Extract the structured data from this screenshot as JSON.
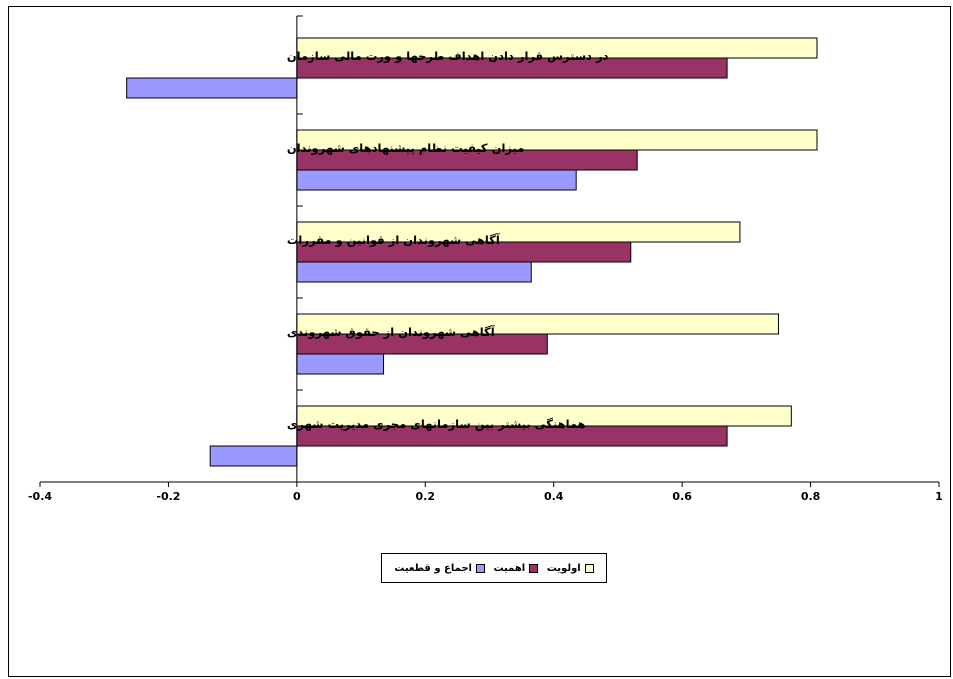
{
  "chart_data": {
    "type": "bar",
    "orientation": "horizontal",
    "categories": [
      "در دسترس قرار دادن اهداف طرحها و ورت مالی سازمان",
      "میزان کیفیت نظام پیشنهادهای شهروندان",
      "آگاهی شهروندان از قوانین و مقررات",
      "آگاهی شهروندان از حقوق شهروندی",
      "هماهنگی بیشتر بین سازمانهای مجری مدیریت شهری"
    ],
    "series": [
      {
        "name": "اولویت",
        "color": "#FFFFCC",
        "values": [
          0.81,
          0.81,
          0.69,
          0.75,
          0.77
        ]
      },
      {
        "name": "اهمیت",
        "color": "#993366",
        "values": [
          0.67,
          0.53,
          0.52,
          0.39,
          0.67
        ]
      },
      {
        "name": "اجماع و قطعیت",
        "color": "#9999FF",
        "values": [
          -0.265,
          0.435,
          0.365,
          0.135,
          -0.135
        ]
      }
    ],
    "xlim": [
      -0.4,
      1
    ],
    "xticks": [
      "-0.4",
      "-0.2",
      "0",
      "0.2",
      "0.4",
      "0.6",
      "0.8",
      "1"
    ],
    "xtick_values": [
      -0.4,
      -0.2,
      0,
      0.2,
      0.4,
      0.6,
      0.8,
      1
    ],
    "grid": false,
    "legend_position": "bottom"
  }
}
